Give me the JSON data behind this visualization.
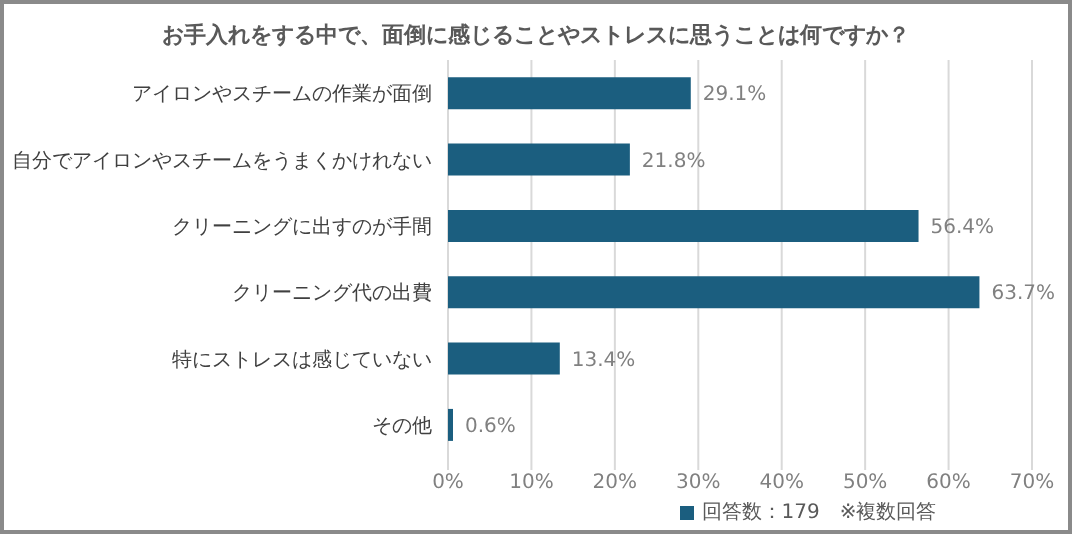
{
  "chart_data": {
    "type": "bar",
    "orientation": "horizontal",
    "title": "お手入れをする中で、面倒に感じることやストレスに思うことは何ですか？",
    "categories": [
      "アイロンやスチームの作業が面倒",
      "自分でアイロンやスチームをうまくかけれない",
      "クリーニングに出すのが手間",
      "クリーニング代の出費",
      "特にストレスは感じていない",
      "その他"
    ],
    "series": [
      {
        "name": "回答数：179　※複数回答",
        "color": "#1b5e7f",
        "values": [
          29.1,
          21.8,
          56.4,
          63.7,
          13.4,
          0.6
        ],
        "value_labels": [
          "29.1%",
          "21.8%",
          "56.4%",
          "63.7%",
          "13.4%",
          "0.6%"
        ]
      }
    ],
    "xlim": [
      0,
      70
    ],
    "xticks": [
      {
        "value": 0,
        "label": "0%"
      },
      {
        "value": 10,
        "label": "10%"
      },
      {
        "value": 20,
        "label": "20%"
      },
      {
        "value": 30,
        "label": "30%"
      },
      {
        "value": 40,
        "label": "40%"
      },
      {
        "value": 50,
        "label": "50%"
      },
      {
        "value": 60,
        "label": "60%"
      },
      {
        "value": 70,
        "label": "70%"
      }
    ],
    "grid": "x",
    "legend": "bottom"
  }
}
